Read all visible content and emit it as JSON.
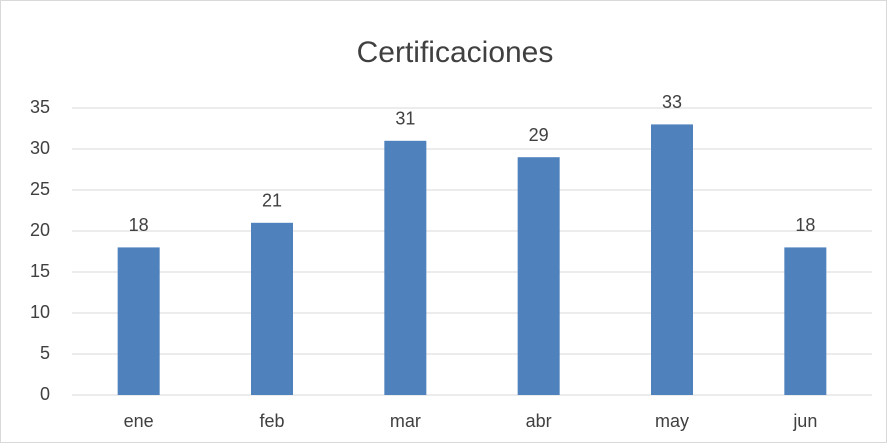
{
  "chart_data": {
    "type": "bar",
    "title": "Certificaciones",
    "categories": [
      "ene",
      "feb",
      "mar",
      "abr",
      "may",
      "jun"
    ],
    "values": [
      18,
      21,
      31,
      29,
      33,
      18
    ],
    "color": "#4f81bd",
    "ylim": [
      0,
      35
    ],
    "yticks": [
      0,
      5,
      10,
      15,
      20,
      25,
      30,
      35
    ],
    "grid": true,
    "data_labels": true
  }
}
